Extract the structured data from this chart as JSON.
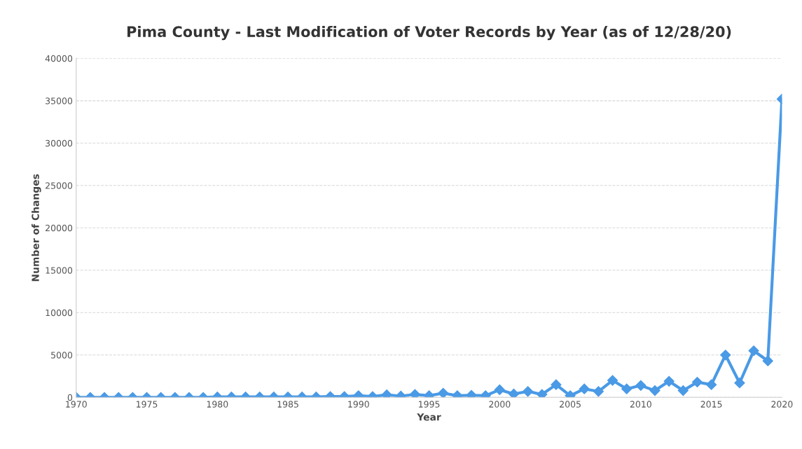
{
  "chart_data": {
    "type": "line",
    "title": "Pima County - Last Modification of Voter Records by Year (as of 12/28/20)",
    "xlabel": "Year",
    "ylabel": "Number of Changes",
    "x": [
      1970,
      1971,
      1972,
      1973,
      1974,
      1975,
      1976,
      1977,
      1978,
      1979,
      1980,
      1981,
      1982,
      1983,
      1984,
      1985,
      1986,
      1987,
      1988,
      1989,
      1990,
      1991,
      1992,
      1993,
      1994,
      1995,
      1996,
      1997,
      1998,
      1999,
      2000,
      2001,
      2002,
      2003,
      2004,
      2005,
      2006,
      2007,
      2008,
      2009,
      2010,
      2011,
      2012,
      2013,
      2014,
      2015,
      2016,
      2017,
      2018,
      2019,
      2020
    ],
    "series": [
      {
        "color": "#4a9ae6",
        "values": [
          0,
          0,
          0,
          0,
          0,
          0,
          0,
          0,
          0,
          0,
          50,
          50,
          50,
          50,
          50,
          50,
          50,
          50,
          100,
          100,
          200,
          100,
          300,
          150,
          350,
          200,
          500,
          200,
          250,
          200,
          900,
          400,
          700,
          350,
          1500,
          200,
          1000,
          700,
          2000,
          1000,
          1400,
          800,
          1900,
          800,
          1800,
          1500,
          5000,
          1700,
          5500,
          4300,
          35200
        ]
      }
    ],
    "xlim": [
      1970,
      2020
    ],
    "xticks": [
      1970,
      1975,
      1980,
      1985,
      1990,
      1995,
      2000,
      2005,
      2010,
      2015,
      2020
    ],
    "ylim": [
      0,
      40000
    ],
    "yticks": [
      0,
      5000,
      10000,
      15000,
      20000,
      25000,
      30000,
      35000,
      40000
    ],
    "grid": "y",
    "marker": "diamond",
    "line_style": "solid"
  }
}
